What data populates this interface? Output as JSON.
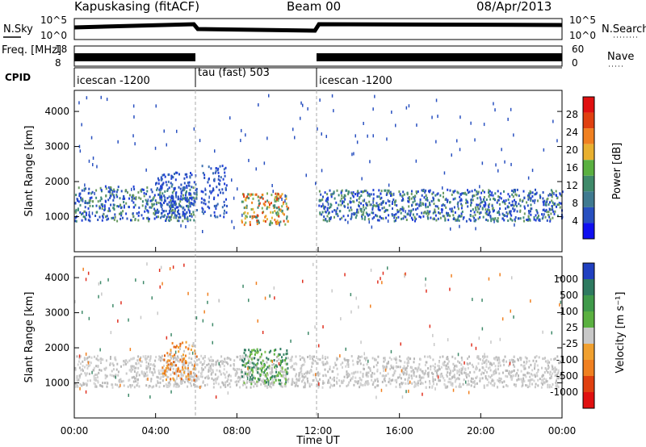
{
  "chart_data": [
    {
      "type": "line",
      "name": "header",
      "title": "Kapuskasing (fitACF)",
      "beam": "Beam 00",
      "date": "08/Apr/2013",
      "series": [
        {
          "name": "N.Sky",
          "left_ticks": [
            "10^5",
            "10^0"
          ],
          "right_ticks": [
            "10^5",
            "10^0"
          ],
          "right_label": "N.Search"
        },
        {
          "name": "Freq. [MHz]",
          "left_ticks": [
            "18",
            "8"
          ],
          "right_ticks": [
            "60",
            "0"
          ],
          "right_label": "Nave"
        }
      ],
      "cpid_label": "CPID",
      "cpid_segments": [
        {
          "label": "icescan -1200",
          "start_h": 0,
          "end_h": 6
        },
        {
          "label": "tau (fast) 503",
          "start_h": 6,
          "end_h": 12
        },
        {
          "label": "icescan -1200",
          "start_h": 12,
          "end_h": 24
        }
      ],
      "mode_blocks_h": [
        [
          0,
          6
        ],
        [
          12,
          24
        ]
      ]
    },
    {
      "type": "heatmap",
      "name": "power",
      "ylabel": "Slant Range [km]",
      "ylim": [
        0,
        4600
      ],
      "yticks": [
        1000,
        2000,
        3000,
        4000
      ],
      "xlim": [
        0,
        24
      ],
      "colorbar": {
        "label": "Power [dB]",
        "ticks": [
          4,
          8,
          12,
          16,
          20,
          24,
          28
        ]
      },
      "features": [
        {
          "t0": 0,
          "t1": 6,
          "r0": 900,
          "r1": 1900,
          "level": "low-mid"
        },
        {
          "t0": 4,
          "t1": 6,
          "r0": 1000,
          "r1": 2300,
          "level": "low"
        },
        {
          "t0": 6.2,
          "t1": 7.5,
          "r0": 1000,
          "r1": 2500,
          "level": "low"
        },
        {
          "t0": 8.2,
          "t1": 10.5,
          "r0": 800,
          "r1": 1700,
          "level": "high"
        },
        {
          "t0": 12,
          "t1": 24,
          "r0": 900,
          "r1": 1800,
          "level": "low-mid"
        }
      ]
    },
    {
      "type": "heatmap",
      "name": "velocity",
      "ylabel": "Slant Range [km]",
      "ylim": [
        0,
        4600
      ],
      "yticks": [
        1000,
        2000,
        3000,
        4000
      ],
      "xlim": [
        0,
        24
      ],
      "xlabel": "Time UT",
      "xticks": [
        "00:00",
        "04:00",
        "08:00",
        "12:00",
        "16:00",
        "20:00",
        "00:00"
      ],
      "colorbar": {
        "label": "Velocity [m s⁻¹]",
        "ticks": [
          "1000",
          "500",
          "100",
          "25",
          "-25",
          "-100",
          "-500",
          "-1000"
        ]
      },
      "features": [
        {
          "t0": 0,
          "t1": 24,
          "r0": 900,
          "r1": 1800,
          "value": "near-zero (grey)"
        },
        {
          "t0": 4.3,
          "t1": 6,
          "r0": 1100,
          "r1": 2200,
          "value": "negative (orange)"
        },
        {
          "t0": 8.2,
          "t1": 10.5,
          "r0": 1000,
          "r1": 2000,
          "value": "positive (green)"
        }
      ]
    }
  ]
}
